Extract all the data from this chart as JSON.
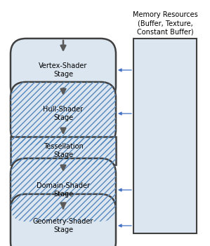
{
  "bg_color": "#ffffff",
  "box_fill_plain": "#dce6f1",
  "box_fill_hatched": "#c5d9f1",
  "box_border_color": "#404040",
  "arrow_color": "#595959",
  "blue_arrow_color": "#4472c4",
  "memory_box_fill": "#dce6f1",
  "memory_box_border": "#404040",
  "stages": [
    {
      "label": "Vertex-Shader\nStage",
      "hatched": false,
      "rect": false
    },
    {
      "label": "Hull-Shader\nStage",
      "hatched": true,
      "rect": false
    },
    {
      "label": "Tessellation\nStage",
      "hatched": true,
      "rect": true
    },
    {
      "label": "Domain-Shader\nStage",
      "hatched": true,
      "rect": false
    },
    {
      "label": "Geometry-Shader\nStage",
      "hatched": false,
      "rect": false
    }
  ],
  "has_mem_arrow": [
    true,
    true,
    false,
    true,
    true
  ],
  "font_size": 7.0,
  "mem_font_size": 7.0,
  "fig_width": 2.99,
  "fig_height": 3.51,
  "dpi": 100
}
